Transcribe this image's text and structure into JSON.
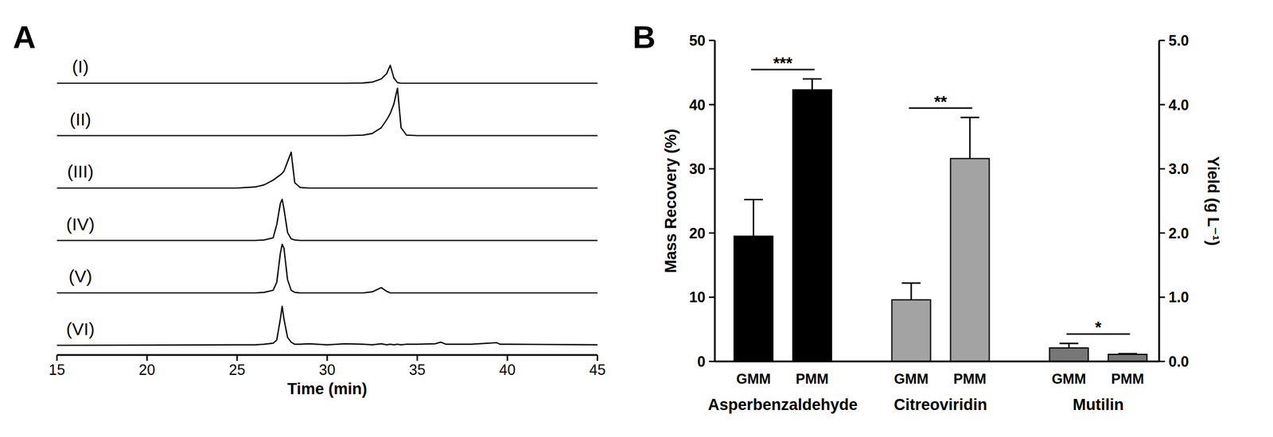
{
  "chart_data": [
    {
      "type": "line",
      "title": "A",
      "x_label": "Time (min)",
      "x": [
        15,
        25,
        26,
        26.5,
        27,
        27.2,
        27.4,
        27.5,
        27.6,
        27.8,
        28,
        28.2,
        28.5,
        29,
        30,
        31,
        32,
        32.5,
        33,
        33.3,
        33.5,
        33.7,
        33.9,
        34.1,
        34.4,
        35,
        36,
        36.3,
        36.6,
        38,
        39.4,
        39.6,
        40,
        45
      ],
      "xlim": [
        15,
        45
      ],
      "xticks": [
        15,
        20,
        25,
        30,
        35,
        40,
        45
      ],
      "ylim": [
        0,
        1
      ],
      "tick_labels": "x",
      "series": [
        {
          "name": "(I)",
          "color": "#000000",
          "values": [
            0,
            0,
            0,
            0,
            0,
            0,
            0,
            0,
            0,
            0,
            0,
            0,
            0,
            0,
            0,
            0,
            0.005,
            0.02,
            0.08,
            0.18,
            0.34,
            0.1,
            0.01,
            0,
            0,
            0,
            0,
            0,
            0,
            0,
            0,
            0,
            0,
            0
          ]
        },
        {
          "name": "(II)",
          "color": "#000000",
          "values": [
            0,
            0,
            0,
            0,
            0,
            0,
            0,
            0,
            0,
            0,
            0,
            0,
            0,
            0,
            0,
            0,
            0.01,
            0.04,
            0.15,
            0.3,
            0.42,
            0.6,
            0.9,
            0.15,
            0.01,
            0,
            0,
            0,
            0,
            0,
            0,
            0,
            0,
            0
          ]
        },
        {
          "name": "(III)",
          "color": "#000000",
          "values": [
            0,
            0,
            0.02,
            0.06,
            0.15,
            0.2,
            0.25,
            0.28,
            0.32,
            0.5,
            0.68,
            0.1,
            0.01,
            0,
            0,
            0,
            0,
            0,
            0,
            0,
            0,
            0,
            0,
            0,
            0,
            0,
            0,
            0,
            0,
            0,
            0,
            0,
            0,
            0
          ]
        },
        {
          "name": "(IV)",
          "color": "#000000",
          "values": [
            0,
            0,
            0,
            0.01,
            0.05,
            0.3,
            0.7,
            0.78,
            0.6,
            0.15,
            0.03,
            0.01,
            0,
            0,
            0,
            0,
            0,
            0,
            0,
            0,
            0,
            0,
            0,
            0,
            0,
            0,
            0,
            0,
            0,
            0,
            0,
            0,
            0,
            0
          ]
        },
        {
          "name": "(V)",
          "color": "#000000",
          "values": [
            0,
            0,
            0,
            0.01,
            0.05,
            0.2,
            0.75,
            0.92,
            0.85,
            0.25,
            0.05,
            0.01,
            0,
            0,
            0,
            0,
            0,
            0.02,
            0.1,
            0.03,
            0,
            0,
            0,
            0,
            0,
            0,
            0,
            0,
            0,
            0,
            0,
            0,
            0,
            0
          ]
        },
        {
          "name": "(VI)",
          "color": "#000000",
          "values": [
            0,
            0.01,
            0.01,
            0.02,
            0.04,
            0.1,
            0.5,
            0.74,
            0.5,
            0.15,
            0.06,
            0.02,
            0.02,
            0.03,
            0.01,
            0.03,
            0.02,
            0.01,
            0.03,
            0.01,
            0.02,
            0.01,
            0.02,
            0.01,
            0.02,
            0.02,
            0.03,
            0.06,
            0.02,
            0.02,
            0.05,
            0.02,
            0.02,
            0.01
          ]
        }
      ]
    },
    {
      "type": "bar",
      "title": "B",
      "categories": [
        "GMM",
        "PMM",
        "GMM",
        "PMM",
        "GMM",
        "PMM"
      ],
      "groups": [
        "Asperbenzaldehyde",
        "Citreoviridin",
        "Mutilin"
      ],
      "values": [
        19.5,
        42.3,
        9.6,
        31.6,
        2.1,
        1.1
      ],
      "errors": [
        5.7,
        1.7,
        2.6,
        6.4,
        0.7,
        0.1
      ],
      "colors": [
        "#000000",
        "#000000",
        "#a3a3a3",
        "#a3a3a3",
        "#777777",
        "#777777"
      ],
      "y_label": "Mass Recovery (%)",
      "ylim": [
        0,
        50
      ],
      "yticks": [
        0,
        10,
        20,
        30,
        40,
        50
      ],
      "y2_label": "Yield (g L⁻¹)",
      "y2lim": [
        0,
        5
      ],
      "y2ticks": [
        {
          "value": 0,
          "label": "0.0"
        },
        {
          "value": 1,
          "label": "1.0"
        },
        {
          "value": 2,
          "label": "2.0"
        },
        {
          "value": 3,
          "label": "3.0"
        },
        {
          "value": 4,
          "label": "4.0"
        },
        {
          "value": 5,
          "label": "5.0"
        }
      ],
      "annotations": [
        {
          "text": "***",
          "between": [
            0,
            1
          ]
        },
        {
          "text": "**",
          "between": [
            2,
            3
          ]
        },
        {
          "text": "*",
          "between": [
            4,
            5
          ]
        }
      ]
    }
  ]
}
